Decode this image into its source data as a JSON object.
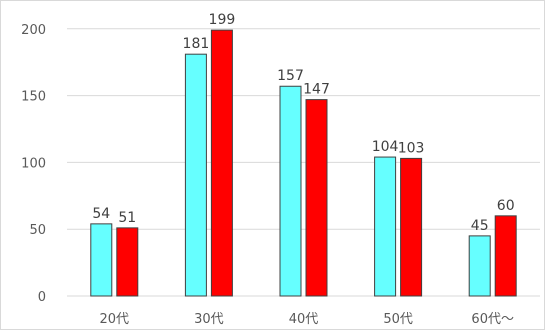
{
  "chart_data": {
    "type": "bar",
    "title": "",
    "xlabel": "",
    "ylabel": "",
    "categories": [
      "20代",
      "30代",
      "40代",
      "50代",
      "60代～"
    ],
    "series": [
      {
        "values": [
          54,
          181,
          157,
          104,
          45
        ],
        "color": "#66ffff"
      },
      {
        "values": [
          51,
          199,
          147,
          103,
          60
        ],
        "color": "#ff0000"
      }
    ],
    "ylim": [
      0,
      220
    ],
    "yticks": [
      0,
      50,
      100,
      150,
      200
    ],
    "grid": true,
    "legend": "none",
    "data_labels": true,
    "gridline_color": "#d9d9d9",
    "bar_outline_color": "#404040"
  }
}
